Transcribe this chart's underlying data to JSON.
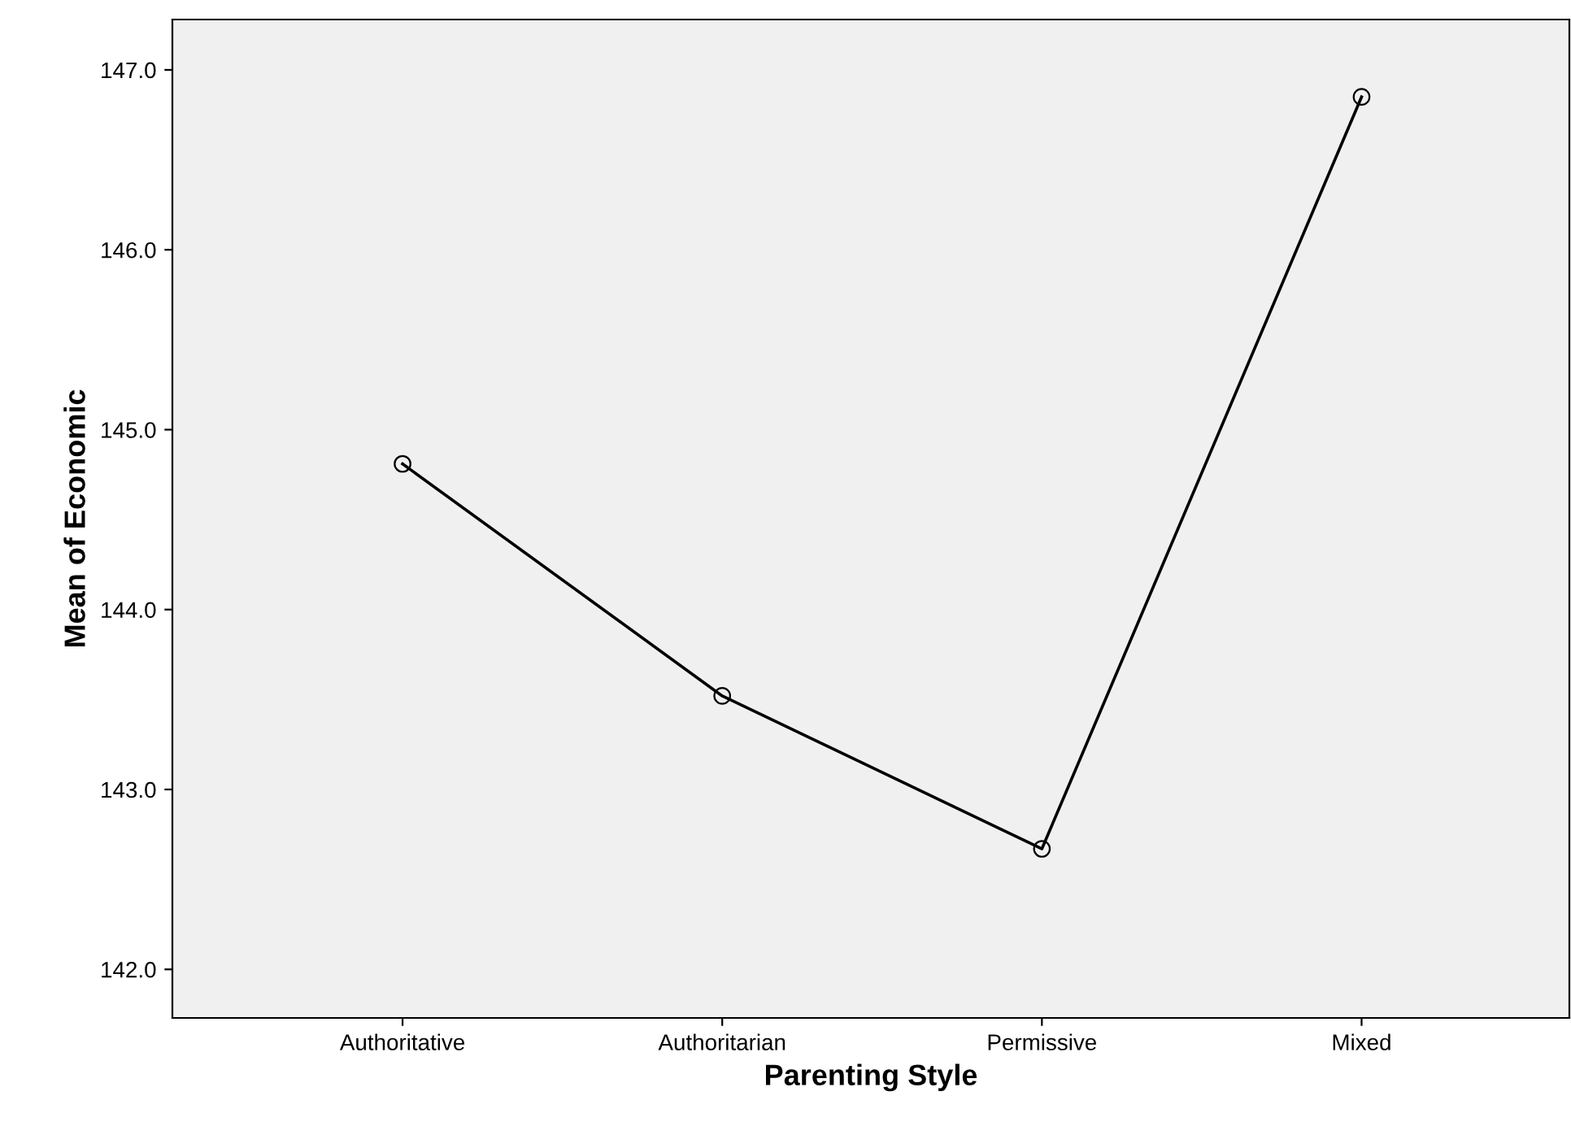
{
  "chart_data": {
    "type": "line",
    "xlabel": "Parenting Style",
    "ylabel": "Mean of Economic",
    "categories": [
      "Authoritative",
      "Authoritarian",
      "Permissive",
      "Mixed"
    ],
    "series": [
      {
        "color": "#000000",
        "values": [
          144.81,
          143.52,
          142.67,
          146.85
        ]
      }
    ],
    "ylim": [
      141.73,
      147.28
    ],
    "yticks": [
      {
        "value": 142,
        "label": "142.0"
      },
      {
        "value": 143,
        "label": "143.0"
      },
      {
        "value": 144,
        "label": "144.0"
      },
      {
        "value": 145,
        "label": "145.0"
      },
      {
        "value": 146,
        "label": "146.0"
      },
      {
        "value": 147,
        "label": "147.0"
      }
    ],
    "marker": "circle",
    "line_style": "solid",
    "grid": false,
    "legend": false
  }
}
